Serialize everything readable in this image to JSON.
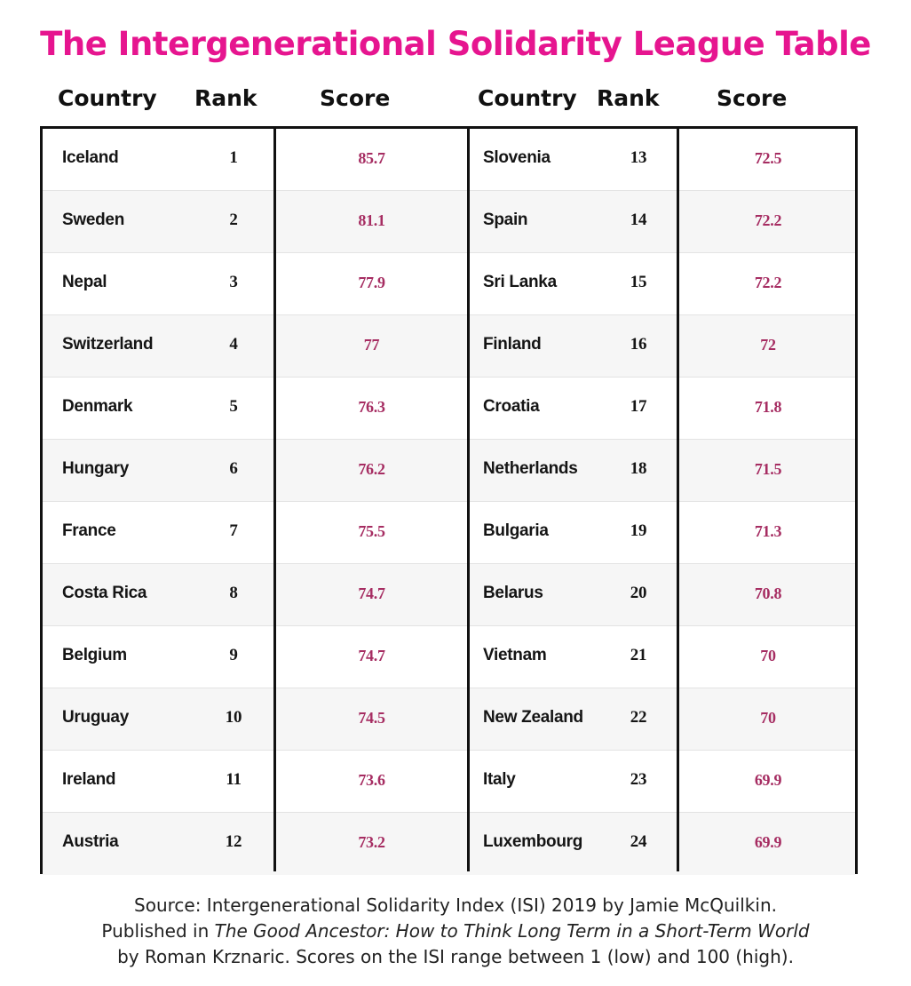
{
  "title": "The Intergenerational Solidarity League Table",
  "headers": {
    "country": "Country",
    "rank": "Rank",
    "score": "Score"
  },
  "left_rows": [
    {
      "country": "Iceland",
      "rank": "1",
      "score": "85.7"
    },
    {
      "country": "Sweden",
      "rank": "2",
      "score": "81.1"
    },
    {
      "country": "Nepal",
      "rank": "3",
      "score": "77.9"
    },
    {
      "country": "Switzerland",
      "rank": "4",
      "score": "77"
    },
    {
      "country": "Denmark",
      "rank": "5",
      "score": "76.3"
    },
    {
      "country": "Hungary",
      "rank": "6",
      "score": "76.2"
    },
    {
      "country": "France",
      "rank": "7",
      "score": "75.5"
    },
    {
      "country": "Costa Rica",
      "rank": "8",
      "score": "74.7"
    },
    {
      "country": "Belgium",
      "rank": "9",
      "score": "74.7"
    },
    {
      "country": "Uruguay",
      "rank": "10",
      "score": "74.5"
    },
    {
      "country": "Ireland",
      "rank": "11",
      "score": "73.6"
    },
    {
      "country": "Austria",
      "rank": "12",
      "score": "73.2"
    }
  ],
  "right_rows": [
    {
      "country": "Slovenia",
      "rank": "13",
      "score": "72.5"
    },
    {
      "country": "Spain",
      "rank": "14",
      "score": "72.2"
    },
    {
      "country": "Sri Lanka",
      "rank": "15",
      "score": "72.2"
    },
    {
      "country": "Finland",
      "rank": "16",
      "score": "72"
    },
    {
      "country": "Croatia",
      "rank": "17",
      "score": "71.8"
    },
    {
      "country": "Netherlands",
      "rank": "18",
      "score": "71.5"
    },
    {
      "country": "Bulgaria",
      "rank": "19",
      "score": "71.3"
    },
    {
      "country": "Belarus",
      "rank": "20",
      "score": "70.8"
    },
    {
      "country": "Vietnam",
      "rank": "21",
      "score": "70"
    },
    {
      "country": "New Zealand",
      "rank": "22",
      "score": "70"
    },
    {
      "country": "Italy",
      "rank": "23",
      "score": "69.9"
    },
    {
      "country": "Luxembourg",
      "rank": "24",
      "score": "69.9"
    }
  ],
  "source": {
    "line1": "Source: Intergenerational Solidarity Index (ISI) 2019 by Jamie McQuilkin.",
    "line2_prefix": "Published in ",
    "book_title": "The Good Ancestor: How to Think Long Term in a Short-Term World",
    "line3": "by Roman Krznaric. Scores on the ISI range between 1 (low) and 100 (high)."
  },
  "colors": {
    "title": "#e6158f",
    "score": "#a62d62",
    "border": "#111111"
  }
}
